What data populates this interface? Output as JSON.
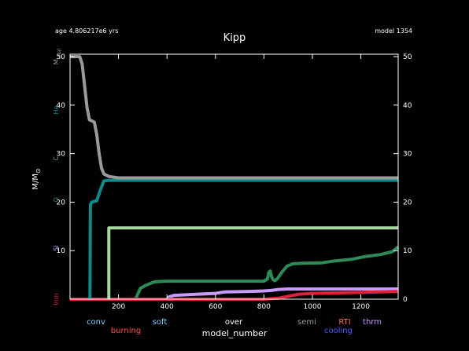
{
  "header": {
    "age_label": "age 4.806217e6 yrs",
    "model_label": "model 1354",
    "title": "Kipp"
  },
  "chart_data": {
    "type": "line",
    "title": "Kipp",
    "xlabel": "model_number",
    "ylabel": "M/M",
    "ylabel_symbol": "⊙",
    "xlim": [
      0,
      1354
    ],
    "ylim": [
      0,
      50.5
    ],
    "x_ticks": [
      200,
      400,
      600,
      800,
      1000,
      1200
    ],
    "y_ticks_left": [
      10,
      20,
      30,
      40,
      50
    ],
    "y_ticks_right": [
      0,
      10,
      20,
      30,
      40,
      50
    ],
    "grid": false,
    "left_side_labels": [
      {
        "text": "M",
        "sub": "total",
        "y": 50,
        "color": "#9a9a9a"
      },
      {
        "text": "He",
        "y": 39,
        "color": "#0f8a8a"
      },
      {
        "text": "C",
        "y": 29,
        "color": "#5fa86a"
      },
      {
        "text": "O",
        "y": 20.5,
        "color": "#2e8b57"
      },
      {
        "text": "Si",
        "y": 10.5,
        "color": "#c89bff"
      },
      {
        "text": "Iron",
        "y": 0,
        "color": "#e0203a"
      }
    ],
    "series": [
      {
        "color": "#2e8b57",
        "points": [
          [
            270,
            0
          ],
          [
            290,
            2.2
          ],
          [
            310,
            2.8
          ],
          [
            330,
            3.2
          ],
          [
            350,
            3.6
          ],
          [
            400,
            3.7
          ],
          [
            600,
            3.7
          ],
          [
            800,
            3.7
          ],
          [
            815,
            4.2
          ],
          [
            820,
            5.5
          ],
          [
            826,
            5.8
          ],
          [
            832,
            4.6
          ],
          [
            838,
            4.0
          ],
          [
            845,
            3.8
          ],
          [
            855,
            4.2
          ],
          [
            875,
            5.6
          ],
          [
            895,
            6.8
          ],
          [
            920,
            7.3
          ],
          [
            960,
            7.4
          ],
          [
            1040,
            7.5
          ],
          [
            1080,
            7.8
          ],
          [
            1160,
            8.2
          ],
          [
            1220,
            8.8
          ],
          [
            1280,
            9.2
          ],
          [
            1330,
            9.8
          ],
          [
            1354,
            10.8
          ]
        ]
      },
      {
        "color": "#c89bff",
        "points": [
          [
            400,
            0
          ],
          [
            410,
            0.5
          ],
          [
            430,
            0.8
          ],
          [
            520,
            1.0
          ],
          [
            600,
            1.2
          ],
          [
            640,
            1.5
          ],
          [
            740,
            1.6
          ],
          [
            800,
            1.7
          ],
          [
            830,
            1.8
          ],
          [
            860,
            2.0
          ],
          [
            900,
            2.1
          ],
          [
            1354,
            2.1
          ]
        ]
      },
      {
        "color": "#e0203a",
        "points": [
          [
            0,
            0
          ],
          [
            800,
            0
          ],
          [
            860,
            0.2
          ],
          [
            900,
            0.6
          ],
          [
            940,
            1.0
          ],
          [
            1000,
            1.2
          ],
          [
            1100,
            1.3
          ],
          [
            1200,
            1.4
          ],
          [
            1354,
            1.6
          ]
        ]
      },
      {
        "color": "#a8d8a0",
        "points": [
          [
            160,
            0
          ],
          [
            160,
            14.7
          ],
          [
            1354,
            14.7
          ]
        ]
      },
      {
        "color": "#0f8a8a",
        "points": [
          [
            82,
            0
          ],
          [
            84,
            19.5
          ],
          [
            90,
            20.0
          ],
          [
            110,
            20.3
          ],
          [
            125,
            22.5
          ],
          [
            140,
            24.4
          ],
          [
            160,
            24.5
          ],
          [
            1354,
            24.5
          ]
        ]
      },
      {
        "color": "#9a9a9a",
        "points": [
          [
            0,
            50
          ],
          [
            40,
            50
          ],
          [
            50,
            48.5
          ],
          [
            60,
            44
          ],
          [
            70,
            39.5
          ],
          [
            80,
            37
          ],
          [
            100,
            36.5
          ],
          [
            110,
            34
          ],
          [
            120,
            30
          ],
          [
            130,
            27
          ],
          [
            140,
            25.8
          ],
          [
            160,
            25.3
          ],
          [
            200,
            25.0
          ],
          [
            1354,
            25.0
          ]
        ]
      }
    ]
  },
  "legend": {
    "items": [
      {
        "label": "conv",
        "color": "#87cefa"
      },
      {
        "label": "burning",
        "color": "#ff4d4d"
      },
      {
        "label": "soft",
        "color": "#87cefa"
      },
      {
        "label": "over",
        "color": "#ffffff"
      },
      {
        "label": "semi",
        "color": "#9a9a9a"
      },
      {
        "label": "RTI",
        "color": "#ff6a4d"
      },
      {
        "label": "cooling",
        "color": "#4a5bff"
      },
      {
        "label": "thrm",
        "color": "#c89bff"
      }
    ]
  }
}
